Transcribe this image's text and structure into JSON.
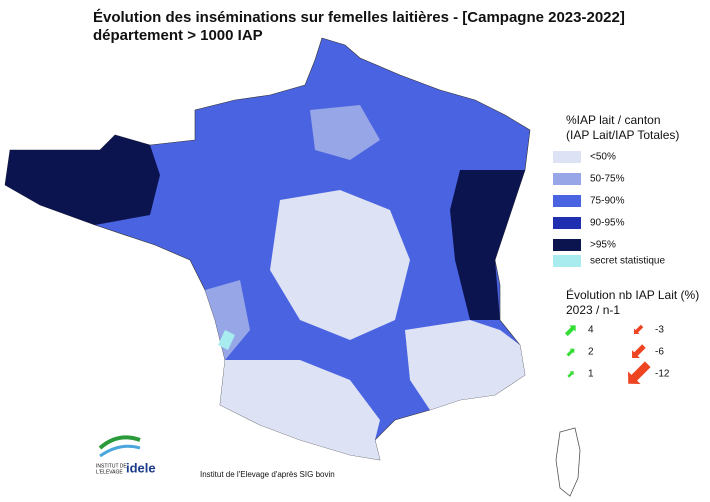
{
  "title": "Évolution des inséminations sur femelles laitières - [Campagne 2023-2022]",
  "subtitle": "département > 1000 IAP",
  "legend_share": {
    "title_lines": [
      "%IAP lait / canton",
      "(IAP Lait/IAP Totales)"
    ],
    "items": [
      {
        "label": "<50%",
        "color": "#dde2f4"
      },
      {
        "label": "50-75%",
        "color": "#96a6e6"
      },
      {
        "label": "75-90%",
        "color": "#4a63e0"
      },
      {
        "label": "90-95%",
        "color": "#1f2fb0"
      },
      {
        "label": ">95%",
        "color": "#0c1450"
      },
      {
        "label": "secret statistique",
        "color": "#a8ecf0"
      }
    ]
  },
  "legend_change": {
    "title_lines": [
      "Évolution nb IAP Lait (%)",
      "2023 / n-1"
    ],
    "items": [
      4,
      2,
      1,
      -3,
      -6,
      -12
    ],
    "colors": {
      "up": "#33dd33",
      "down": "#ee4422"
    }
  },
  "logo": {
    "lines": [
      "INSTITUT DE",
      "L'ELEVAGE"
    ],
    "brand": "idele"
  },
  "credit": "Institut de l'Elevage d'après SIG bovin"
}
